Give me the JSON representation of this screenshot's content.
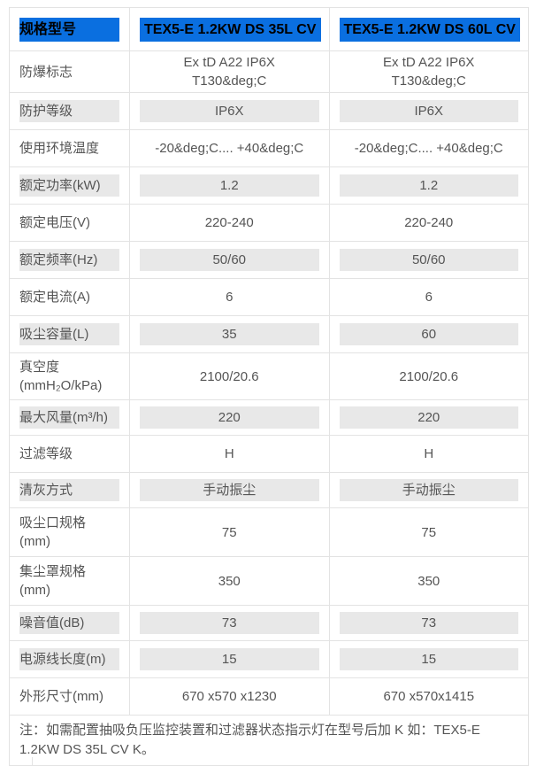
{
  "header": {
    "label": "规格型号",
    "models": [
      "TEX5-E 1.2KW DS 35L CV",
      "TEX5-E 1.2KW DS 60L CV"
    ]
  },
  "rows": [
    {
      "label": "防爆标志",
      "values": [
        "Ex tD A22 IP6X\nT130&deg;C",
        "Ex tD A22 IP6X\nT130&deg;C"
      ],
      "highlight": false
    },
    {
      "label": "防护等级",
      "values": [
        "IP6X",
        "IP6X"
      ],
      "highlight": true
    },
    {
      "label": "使用环境温度",
      "values": [
        "-20&deg;C.... +40&deg;C",
        "-20&deg;C.... +40&deg;C"
      ],
      "highlight": false
    },
    {
      "label": "额定功率(kW)",
      "values": [
        "1.2",
        "1.2"
      ],
      "highlight": true
    },
    {
      "label": "额定电压(V)",
      "values": [
        "220-240",
        "220-240"
      ],
      "highlight": false
    },
    {
      "label": "额定频率(Hz)",
      "values": [
        "50/60",
        "50/60"
      ],
      "highlight": true
    },
    {
      "label": "额定电流(A)",
      "values": [
        "6",
        "6"
      ],
      "highlight": false
    },
    {
      "label": "吸尘容量(L)",
      "values": [
        "35",
        "60"
      ],
      "highlight": true
    },
    {
      "label": "真空度\n(mmH₂O/kPa)",
      "values": [
        "2100/20.6",
        "2100/20.6"
      ],
      "highlight": false
    },
    {
      "label": "最大风量(m³/h)",
      "values": [
        "220",
        "220"
      ],
      "highlight": true
    },
    {
      "label": "过滤等级",
      "values": [
        "H",
        "H"
      ],
      "highlight": false
    },
    {
      "label": "清灰方式",
      "values": [
        "手动振尘",
        "手动振尘"
      ],
      "highlight": true
    },
    {
      "label": "吸尘口规格\n(mm)",
      "values": [
        "75",
        "75"
      ],
      "highlight": false
    },
    {
      "label": "集尘罩规格\n(mm)",
      "values": [
        "350",
        "350"
      ],
      "highlight": false
    },
    {
      "label": "噪音值(dB)",
      "values": [
        "73",
        "73"
      ],
      "highlight": true
    },
    {
      "label": "电源线长度(m)",
      "values": [
        "15",
        "15"
      ],
      "highlight": true
    },
    {
      "label": "外形尺寸(mm)",
      "values": [
        "670 x570 x1230",
        "670 x570x1415"
      ],
      "highlight": false
    }
  ],
  "note": "注：如需配置抽吸负压监控装置和过滤器状态指示灯在型号后加 K 如：TEX5-E 1.2KW DS 35L CV K。",
  "colors": {
    "header_bg": "#0a6fe0",
    "highlight_bg": "#e8e8e8",
    "text": "#555555"
  }
}
